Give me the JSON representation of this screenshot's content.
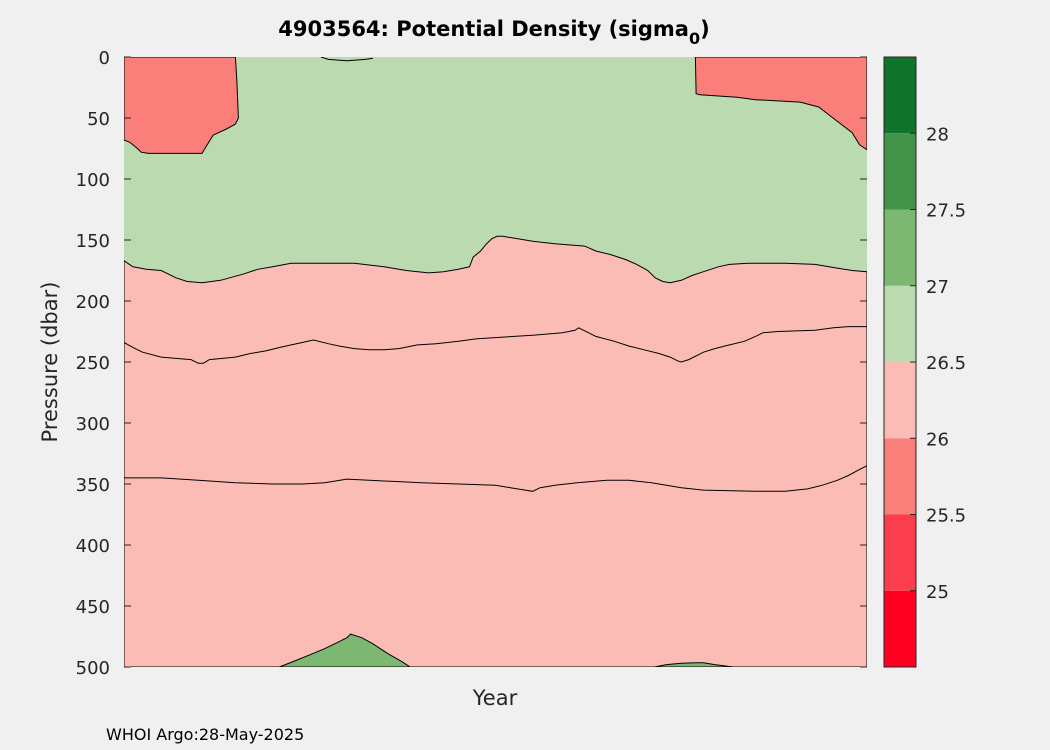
{
  "chart_data": {
    "type": "contourf",
    "title": "4903564: Potential Density (sigma",
    "title_subscript": "0",
    "title_suffix": ")",
    "xlabel": "Year",
    "ylabel": "Pressure (dbar)",
    "ylim": [
      0,
      500
    ],
    "y_reversed": true,
    "yticks": [
      "0",
      "50",
      "100",
      "150",
      "200",
      "250",
      "300",
      "350",
      "400",
      "450",
      "500"
    ],
    "colorbar": {
      "ticks": [
        "25",
        "25.5",
        "26",
        "26.5",
        "27",
        "27.5",
        "28"
      ],
      "range": [
        24.5,
        28.5
      ],
      "levels": [
        {
          "min": 24.5,
          "max": 25.0,
          "color": "#ff0022"
        },
        {
          "min": 25.0,
          "max": 25.5,
          "color": "#fc3d4d"
        },
        {
          "min": 25.5,
          "max": 26.0,
          "color": "#fa7e7a"
        },
        {
          "min": 26.0,
          "max": 26.5,
          "color": "#fcbcb6"
        },
        {
          "min": 26.5,
          "max": 27.0,
          "color": "#bcdab0"
        },
        {
          "min": 27.0,
          "max": 27.5,
          "color": "#7db872"
        },
        {
          "min": 27.5,
          "max": 28.0,
          "color": "#43934a"
        },
        {
          "min": 28.0,
          "max": 28.5,
          "color": "#11742c"
        }
      ]
    },
    "contours": [
      {
        "level": 26.0,
        "name": "contour-26-left",
        "fill": "#fa7e7a",
        "points": [
          [
            0.0,
            0
          ],
          [
            0.0,
            68
          ],
          [
            0.8,
            70
          ],
          [
            1.8,
            75
          ],
          [
            2.3,
            78
          ],
          [
            3.3,
            79
          ],
          [
            10.5,
            79
          ],
          [
            11.2,
            72
          ],
          [
            12.0,
            64
          ],
          [
            13.8,
            59
          ],
          [
            15.0,
            55
          ],
          [
            15.4,
            50
          ],
          [
            15.2,
            20
          ],
          [
            15.0,
            0
          ]
        ]
      },
      {
        "level": 26.0,
        "name": "contour-26-right",
        "fill": "#fa7e7a",
        "points": [
          [
            76.9,
            0
          ],
          [
            77.0,
            30
          ],
          [
            77.5,
            31
          ],
          [
            82.5,
            33
          ],
          [
            85.0,
            35
          ],
          [
            91.0,
            37
          ],
          [
            93.5,
            41
          ],
          [
            95.0,
            48
          ],
          [
            96.5,
            55
          ],
          [
            98.0,
            62
          ],
          [
            99.0,
            72
          ],
          [
            100.0,
            76
          ],
          [
            100.0,
            0
          ]
        ]
      },
      {
        "level": 26.5,
        "name": "contour-26-5",
        "fill": "#fcbcb6",
        "points": [
          [
            0,
            167
          ],
          [
            1.2,
            172
          ],
          [
            3.0,
            174
          ],
          [
            5.0,
            175
          ],
          [
            7.0,
            181
          ],
          [
            8.5,
            184
          ],
          [
            10.5,
            185
          ],
          [
            13.0,
            183
          ],
          [
            16.0,
            178
          ],
          [
            18.0,
            174
          ],
          [
            20.0,
            172
          ],
          [
            22.5,
            169
          ],
          [
            26.0,
            169
          ],
          [
            31.0,
            169
          ],
          [
            35.0,
            172
          ],
          [
            38.0,
            175
          ],
          [
            41.0,
            177
          ],
          [
            43.0,
            176
          ],
          [
            45.0,
            174
          ],
          [
            46.5,
            172
          ],
          [
            47.0,
            164
          ],
          [
            48.0,
            159
          ],
          [
            48.8,
            153
          ],
          [
            49.5,
            149
          ],
          [
            50.2,
            147
          ],
          [
            51.0,
            147
          ],
          [
            53.0,
            149
          ],
          [
            55.0,
            151
          ],
          [
            58.0,
            153
          ],
          [
            62.0,
            155
          ],
          [
            63.5,
            159
          ],
          [
            65.5,
            162
          ],
          [
            67.5,
            166
          ],
          [
            69.0,
            170
          ],
          [
            70.5,
            175
          ],
          [
            71.5,
            181
          ],
          [
            72.5,
            184
          ],
          [
            73.5,
            185
          ],
          [
            75.0,
            183
          ],
          [
            76.5,
            179
          ],
          [
            78.0,
            176
          ],
          [
            80.0,
            172
          ],
          [
            81.5,
            170
          ],
          [
            84.0,
            169
          ],
          [
            89.0,
            169
          ],
          [
            93.0,
            170
          ],
          [
            96.0,
            173
          ],
          [
            98.0,
            175
          ],
          [
            100.0,
            176
          ],
          [
            100,
            500
          ],
          [
            0,
            500
          ]
        ]
      },
      {
        "level": 27.0,
        "name": "contour-27-left",
        "fill": "#7db872",
        "points": [
          [
            20.9,
            500
          ],
          [
            23.0,
            495
          ],
          [
            25.0,
            490
          ],
          [
            27.0,
            485
          ],
          [
            29.0,
            479
          ],
          [
            30.0,
            476
          ],
          [
            30.5,
            473
          ],
          [
            31.0,
            474
          ],
          [
            32.0,
            476
          ],
          [
            33.5,
            481
          ],
          [
            35.5,
            489
          ],
          [
            37.5,
            496
          ],
          [
            38.5,
            500
          ]
        ]
      },
      {
        "level": 27.0,
        "name": "contour-27-right",
        "fill": "#7db872",
        "points": [
          [
            71.4,
            500
          ],
          [
            73.0,
            498
          ],
          [
            75.0,
            497
          ],
          [
            77.0,
            496.5
          ],
          [
            78.0,
            496.5
          ],
          [
            79.5,
            498
          ],
          [
            82.0,
            500
          ]
        ]
      }
    ],
    "contour_lines": [
      {
        "level": 26.5,
        "name": "contour-line-26-5-lower",
        "points": [
          [
            0,
            234
          ],
          [
            1.5,
            239
          ],
          [
            2.5,
            242
          ],
          [
            5.0,
            246
          ],
          [
            9.0,
            248
          ],
          [
            10.0,
            251
          ],
          [
            10.7,
            251
          ],
          [
            11.5,
            248
          ],
          [
            15.0,
            246
          ],
          [
            17.0,
            243
          ],
          [
            19.0,
            241
          ],
          [
            21.0,
            238
          ],
          [
            22.5,
            236
          ],
          [
            24.0,
            234
          ],
          [
            25.5,
            232
          ],
          [
            27.5,
            235
          ],
          [
            29.0,
            237
          ],
          [
            31.0,
            239
          ],
          [
            33.0,
            240
          ],
          [
            35.0,
            240
          ],
          [
            37.0,
            239
          ],
          [
            39.5,
            236
          ],
          [
            42.0,
            235
          ],
          [
            45.0,
            233
          ],
          [
            47.5,
            231
          ],
          [
            50.0,
            230
          ],
          [
            55.0,
            228
          ],
          [
            59.0,
            226
          ],
          [
            60.7,
            224
          ],
          [
            61.2,
            222
          ],
          [
            62.5,
            226
          ],
          [
            63.5,
            229
          ],
          [
            66.0,
            233
          ],
          [
            68.0,
            237
          ],
          [
            70.0,
            240
          ],
          [
            72.0,
            243
          ],
          [
            73.5,
            246
          ],
          [
            74.5,
            249
          ],
          [
            75.0,
            250
          ],
          [
            76.0,
            248
          ],
          [
            78.0,
            242
          ],
          [
            79.5,
            239
          ],
          [
            81.5,
            236
          ],
          [
            83.5,
            233
          ],
          [
            85.0,
            229
          ],
          [
            86.0,
            226
          ],
          [
            88.0,
            225
          ],
          [
            93.0,
            224
          ],
          [
            95.5,
            222
          ],
          [
            97.5,
            221
          ],
          [
            100.0,
            221
          ]
        ]
      },
      {
        "level": 26.5,
        "name": "contour-line-26-5-deep",
        "points": [
          [
            0,
            345
          ],
          [
            5.0,
            345
          ],
          [
            10.0,
            347
          ],
          [
            15.0,
            349
          ],
          [
            20.0,
            350
          ],
          [
            24.0,
            350
          ],
          [
            27.0,
            349
          ],
          [
            30.0,
            346
          ],
          [
            33.0,
            347
          ],
          [
            37.0,
            348
          ],
          [
            40.0,
            349
          ],
          [
            45.0,
            350
          ],
          [
            50.0,
            351
          ],
          [
            52.0,
            353
          ],
          [
            54.0,
            355
          ],
          [
            55.0,
            356
          ],
          [
            56.0,
            353
          ],
          [
            58.0,
            351
          ],
          [
            61.0,
            349
          ],
          [
            65.0,
            347
          ],
          [
            68.0,
            347
          ],
          [
            71.0,
            349
          ],
          [
            73.0,
            351
          ],
          [
            75.0,
            353
          ],
          [
            78.0,
            355
          ],
          [
            85.0,
            356
          ],
          [
            89.0,
            356
          ],
          [
            92.0,
            354
          ],
          [
            94.0,
            351
          ],
          [
            96.0,
            347
          ],
          [
            97.5,
            343
          ],
          [
            99.0,
            338
          ],
          [
            100.0,
            335
          ]
        ]
      },
      {
        "level": 26.0,
        "name": "contour-line-26-top",
        "points": [
          [
            26.5,
            0
          ],
          [
            27.5,
            2
          ],
          [
            30.0,
            3
          ],
          [
            32.5,
            2
          ],
          [
            33.5,
            1
          ]
        ]
      }
    ]
  }
}
